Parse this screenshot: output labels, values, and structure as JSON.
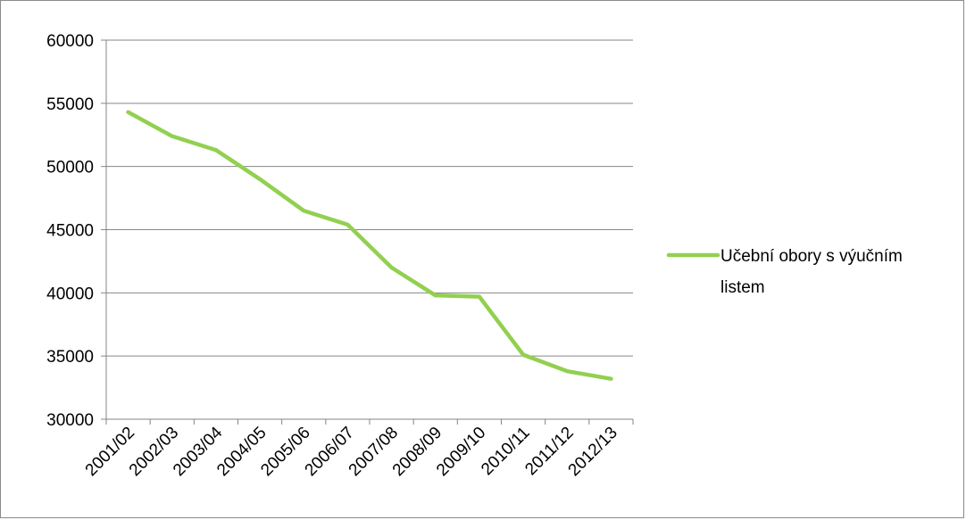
{
  "chart_data": {
    "type": "line",
    "title": "",
    "xlabel": "",
    "ylabel": "",
    "categories": [
      "2001/02",
      "2002/03",
      "2003/04",
      "2004/05",
      "2005/06",
      "2006/07",
      "2007/08",
      "2008/09",
      "2009/10",
      "2010/11",
      "2011/12",
      "2012/13"
    ],
    "series": [
      {
        "name": "Učební obory s výučním listem",
        "values": [
          54300,
          52400,
          51300,
          49000,
          46500,
          45400,
          42000,
          39800,
          39700,
          35100,
          33800,
          33200
        ],
        "color": "#92d050"
      }
    ],
    "ylim": [
      30000,
      60000
    ],
    "yticks": [
      30000,
      35000,
      40000,
      45000,
      50000,
      55000,
      60000
    ],
    "grid": true,
    "legend_position": "right",
    "legend_label_lines": [
      "Učební obory s výučním",
      "listem"
    ]
  }
}
